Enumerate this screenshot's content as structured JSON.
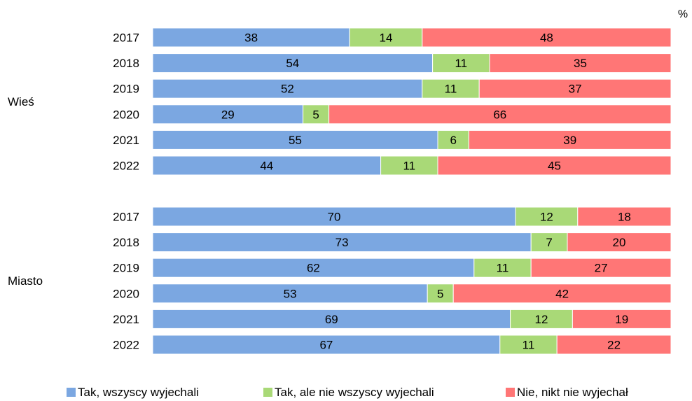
{
  "chart_data": {
    "type": "bar",
    "orientation": "horizontal",
    "stacked": true,
    "unit_label": "%",
    "xlim": [
      0,
      100
    ],
    "legend_position": "bottom",
    "grid": false,
    "colors": {
      "tak_wszyscy": "#7BA7E1",
      "tak_nie_wszyscy": "#A9D977",
      "nie": "#FF7676"
    },
    "series": [
      {
        "key": "tak_wszyscy",
        "name": "Tak, wszyscy wyjechali"
      },
      {
        "key": "tak_nie_wszyscy",
        "name": "Tak, ale nie wszyscy wyjechali"
      },
      {
        "key": "nie",
        "name": "Nie, nikt nie wyjechał"
      }
    ],
    "groups": [
      {
        "name": "Wieś",
        "rows": [
          {
            "year": "2017",
            "values": [
              38,
              14,
              48
            ]
          },
          {
            "year": "2018",
            "values": [
              54,
              11,
              35
            ]
          },
          {
            "year": "2019",
            "values": [
              52,
              11,
              37
            ]
          },
          {
            "year": "2020",
            "values": [
              29,
              5,
              66
            ]
          },
          {
            "year": "2021",
            "values": [
              55,
              6,
              39
            ]
          },
          {
            "year": "2022",
            "values": [
              44,
              11,
              45
            ]
          }
        ]
      },
      {
        "name": "Miasto",
        "rows": [
          {
            "year": "2017",
            "values": [
              70,
              12,
              18
            ]
          },
          {
            "year": "2018",
            "values": [
              73,
              7,
              20
            ]
          },
          {
            "year": "2019",
            "values": [
              62,
              11,
              27
            ]
          },
          {
            "year": "2020",
            "values": [
              53,
              5,
              42
            ]
          },
          {
            "year": "2021",
            "values": [
              69,
              12,
              19
            ]
          },
          {
            "year": "2022",
            "values": [
              67,
              11,
              22
            ]
          }
        ]
      }
    ]
  }
}
